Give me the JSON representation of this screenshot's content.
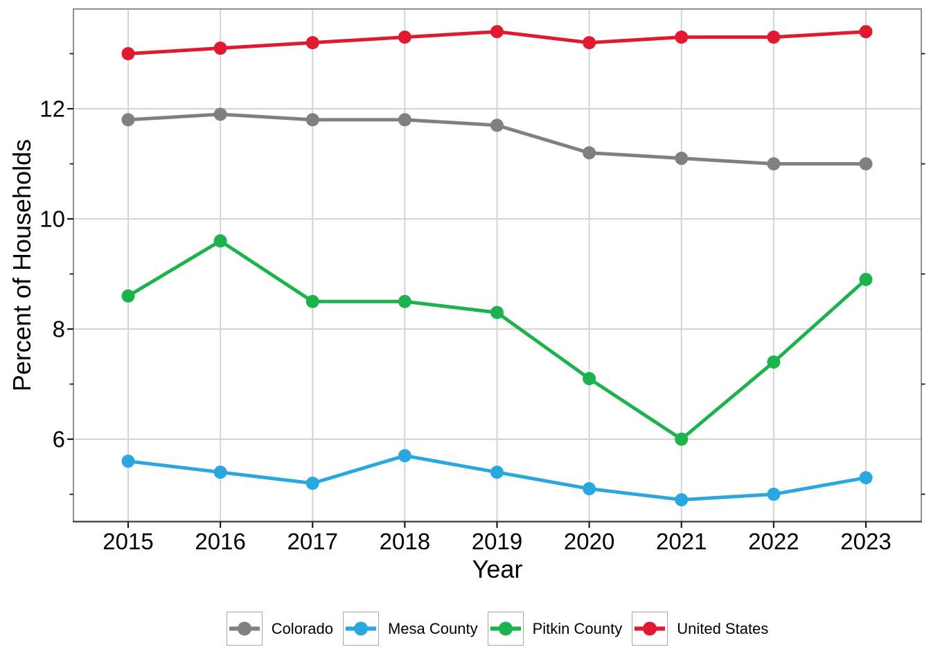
{
  "chart_data": {
    "type": "line",
    "title": "",
    "xlabel": "Year",
    "ylabel": "Percent of Households",
    "x": [
      2015,
      2016,
      2017,
      2018,
      2019,
      2020,
      2021,
      2022,
      2023
    ],
    "series": [
      {
        "name": "Colorado",
        "color": "#808080",
        "values": [
          11.8,
          11.9,
          11.8,
          11.8,
          11.7,
          11.2,
          11.1,
          11.0,
          11.0
        ]
      },
      {
        "name": "Mesa County",
        "color": "#29A8E0",
        "values": [
          5.6,
          5.4,
          5.2,
          5.7,
          5.4,
          5.1,
          4.9,
          5.0,
          5.3
        ]
      },
      {
        "name": "Pitkin County",
        "color": "#1CB24C",
        "values": [
          8.6,
          9.6,
          8.5,
          8.5,
          8.3,
          7.1,
          6.0,
          7.4,
          8.9
        ]
      },
      {
        "name": "United States",
        "color": "#E01A30",
        "values": [
          13.0,
          13.1,
          13.2,
          13.3,
          13.4,
          13.2,
          13.3,
          13.3,
          13.4
        ]
      }
    ],
    "y_ticks": [
      6,
      8,
      10,
      12
    ],
    "y_minor_ticks": [
      5,
      7,
      9,
      11,
      13
    ],
    "ylim": [
      4.5,
      13.8
    ],
    "grid": true,
    "legend_position": "bottom",
    "colors": {
      "grid_line": "#D4D4D4",
      "panel_border": "#8F8F8F",
      "axis_line": "#4D4D4D",
      "tick_mark": "#1A1A1A"
    }
  }
}
